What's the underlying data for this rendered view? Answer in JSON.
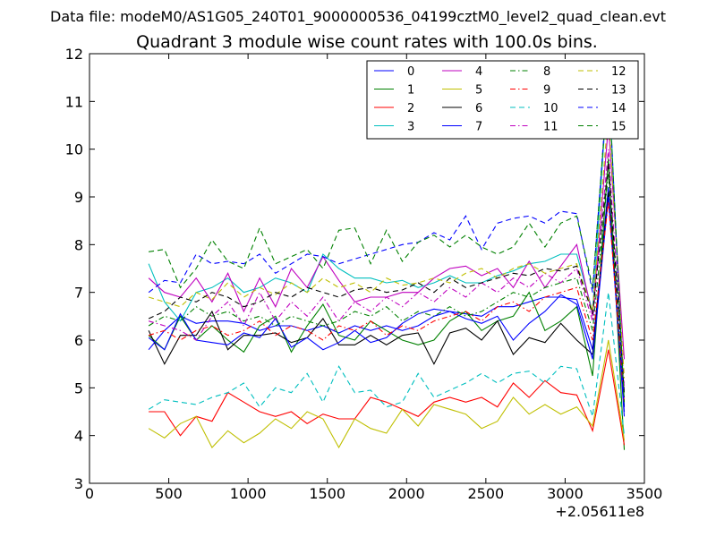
{
  "chart_data": {
    "type": "line",
    "suptitle": "Data file: modeM0/AS1G05_240T01_9000000536_04199cztM0_level2_quad_clean.evt",
    "title": "Quadrant 3 module wise count rates with 100.0s bins.",
    "xlabel": "",
    "ylabel": "",
    "x_offset_label": "+2.05611e8",
    "xlim": [
      0,
      3500
    ],
    "ylim": [
      3,
      12
    ],
    "xticks": [
      "0",
      "500",
      "1000",
      "1500",
      "2000",
      "2500",
      "3000",
      "3500"
    ],
    "yticks": [
      "3",
      "4",
      "5",
      "6",
      "7",
      "8",
      "9",
      "10",
      "11",
      "12"
    ],
    "grid": false,
    "legend_position": "top-right",
    "legend_columns": 4,
    "x": [
      373,
      473,
      573,
      673,
      773,
      873,
      973,
      1073,
      1173,
      1273,
      1373,
      1473,
      1573,
      1673,
      1773,
      1873,
      1973,
      2073,
      2173,
      2273,
      2373,
      2473,
      2573,
      2673,
      2773,
      2873,
      2973,
      3073,
      3173,
      3273,
      3373
    ],
    "series": [
      {
        "name": "0",
        "color": "#0000ff",
        "dash": "solid",
        "values": [
          5.8,
          6.2,
          6.5,
          6.35,
          6.4,
          6.4,
          6.35,
          6.2,
          6.3,
          6.3,
          6.2,
          6.3,
          6.15,
          6.3,
          6.2,
          6.3,
          6.2,
          6.3,
          6.5,
          6.6,
          6.55,
          6.5,
          6.7,
          6.7,
          6.8,
          6.9,
          6.9,
          6.85,
          5.8,
          9.2,
          4.4
        ]
      },
      {
        "name": "1",
        "color": "#008000",
        "dash": "solid",
        "values": [
          6.1,
          5.8,
          6.5,
          6.0,
          6.3,
          6.0,
          5.75,
          6.3,
          6.5,
          5.75,
          6.3,
          6.75,
          6.1,
          6.0,
          6.4,
          6.2,
          6.0,
          5.9,
          6.0,
          6.4,
          6.6,
          6.2,
          6.4,
          6.5,
          7.0,
          6.2,
          6.4,
          6.7,
          5.25,
          9.8,
          3.7
        ]
      },
      {
        "name": "2",
        "color": "#ff0000",
        "dash": "solid",
        "values": [
          4.5,
          4.5,
          4.0,
          4.4,
          4.3,
          4.9,
          4.7,
          4.5,
          4.4,
          4.5,
          4.25,
          4.45,
          4.35,
          4.35,
          4.8,
          4.7,
          4.55,
          4.4,
          4.7,
          4.8,
          4.7,
          4.8,
          4.6,
          5.1,
          4.8,
          5.15,
          4.9,
          4.85,
          4.1,
          5.8,
          3.8
        ]
      },
      {
        "name": "3",
        "color": "#00bfbf",
        "dash": "solid",
        "values": [
          7.6,
          6.8,
          6.4,
          7.0,
          7.1,
          7.3,
          7.0,
          7.1,
          7.3,
          7.2,
          7.0,
          7.8,
          7.5,
          7.3,
          7.3,
          7.2,
          7.25,
          7.1,
          7.2,
          7.35,
          7.2,
          7.2,
          7.35,
          7.45,
          7.6,
          7.65,
          7.8,
          7.8,
          6.6,
          11.6,
          4.6
        ]
      },
      {
        "name": "4",
        "color": "#bf00bf",
        "dash": "solid",
        "values": [
          7.3,
          7.0,
          6.9,
          7.3,
          6.8,
          7.4,
          6.6,
          7.3,
          6.7,
          7.5,
          7.1,
          7.75,
          7.25,
          6.8,
          6.9,
          6.9,
          7.0,
          7.0,
          7.3,
          7.5,
          7.55,
          7.35,
          7.5,
          7.1,
          7.65,
          7.1,
          7.55,
          8.0,
          6.5,
          10.5,
          5.6
        ]
      },
      {
        "name": "5",
        "color": "#bfbf00",
        "dash": "solid",
        "values": [
          4.15,
          3.95,
          4.25,
          4.4,
          3.75,
          4.1,
          3.85,
          4.05,
          4.35,
          4.15,
          4.5,
          4.35,
          3.75,
          4.35,
          4.15,
          4.05,
          4.55,
          4.2,
          4.65,
          4.55,
          4.45,
          4.15,
          4.3,
          4.8,
          4.45,
          4.65,
          4.45,
          4.6,
          4.2,
          6.0,
          3.9
        ]
      },
      {
        "name": "6",
        "color": "#000000",
        "dash": "solid",
        "values": [
          6.2,
          5.5,
          6.1,
          6.1,
          6.6,
          5.8,
          6.1,
          6.1,
          6.15,
          5.95,
          6.05,
          6.45,
          5.9,
          5.9,
          6.1,
          5.9,
          6.1,
          6.15,
          5.5,
          6.15,
          6.25,
          6.0,
          6.4,
          5.7,
          6.05,
          5.95,
          6.35,
          6.0,
          5.7,
          9.1,
          4.6
        ]
      },
      {
        "name": "7",
        "color": "#0000ff",
        "dash": "solid",
        "values": [
          6.05,
          5.8,
          6.55,
          6.0,
          5.95,
          5.9,
          6.15,
          6.05,
          6.45,
          5.85,
          6.05,
          5.8,
          5.95,
          6.2,
          5.95,
          6.05,
          6.35,
          6.55,
          6.65,
          6.6,
          6.45,
          6.35,
          6.5,
          6.0,
          6.35,
          6.6,
          6.95,
          6.75,
          5.6,
          9.0,
          4.5
        ]
      },
      {
        "name": "8",
        "color": "#008000",
        "dash": "dashdot",
        "values": [
          6.3,
          6.5,
          6.4,
          6.7,
          6.5,
          6.6,
          6.4,
          6.5,
          6.3,
          6.5,
          6.4,
          6.3,
          6.4,
          6.6,
          6.5,
          6.7,
          6.4,
          6.6,
          6.5,
          6.7,
          6.5,
          6.6,
          6.8,
          7.0,
          6.9,
          7.1,
          7.2,
          7.3,
          6.2,
          9.5,
          4.8
        ]
      },
      {
        "name": "9",
        "color": "#ff0000",
        "dash": "dashdot",
        "values": [
          6.1,
          6.2,
          6.0,
          6.2,
          6.3,
          6.1,
          6.2,
          6.4,
          6.1,
          6.3,
          6.2,
          6.0,
          6.3,
          6.2,
          6.4,
          6.1,
          6.3,
          6.2,
          6.4,
          6.5,
          6.6,
          6.4,
          6.7,
          6.8,
          6.6,
          6.9,
          7.0,
          7.1,
          6.0,
          8.9,
          4.7
        ]
      },
      {
        "name": "10",
        "color": "#00bfbf",
        "dash": "dashed",
        "values": [
          4.55,
          4.75,
          4.7,
          4.65,
          4.8,
          4.9,
          5.1,
          4.6,
          5.0,
          4.9,
          5.3,
          4.7,
          5.45,
          4.9,
          4.95,
          4.6,
          4.7,
          5.3,
          4.8,
          4.95,
          5.1,
          5.3,
          5.1,
          5.3,
          5.35,
          5.1,
          5.45,
          5.4,
          4.4,
          7.0,
          4.0
        ]
      },
      {
        "name": "11",
        "color": "#bf00bf",
        "dash": "dashdot",
        "values": [
          6.4,
          6.3,
          6.2,
          6.0,
          6.5,
          6.8,
          6.3,
          7.0,
          6.4,
          6.8,
          6.5,
          6.9,
          6.4,
          6.8,
          6.6,
          6.9,
          6.7,
          7.0,
          6.8,
          7.1,
          6.9,
          7.2,
          7.0,
          7.3,
          7.1,
          7.4,
          7.2,
          7.5,
          6.4,
          10.0,
          5.0
        ]
      },
      {
        "name": "12",
        "color": "#bfbf00",
        "dash": "dashed",
        "values": [
          6.9,
          6.8,
          6.7,
          7.0,
          6.85,
          7.2,
          6.9,
          7.1,
          6.95,
          7.2,
          7.0,
          7.3,
          7.1,
          7.2,
          7.0,
          7.3,
          7.15,
          7.2,
          7.3,
          7.2,
          7.4,
          7.5,
          7.3,
          7.5,
          7.6,
          7.4,
          7.5,
          7.6,
          6.6,
          10.8,
          5.2
        ]
      },
      {
        "name": "13",
        "color": "#000000",
        "dash": "dashed",
        "values": [
          6.45,
          6.6,
          6.9,
          6.8,
          7.0,
          6.9,
          6.7,
          6.8,
          7.0,
          6.9,
          7.1,
          7.0,
          6.9,
          7.05,
          7.1,
          7.0,
          7.05,
          7.2,
          7.0,
          7.3,
          7.1,
          7.2,
          7.3,
          7.4,
          7.35,
          7.5,
          7.45,
          7.55,
          6.55,
          9.7,
          4.9
        ]
      },
      {
        "name": "14",
        "color": "#0000ff",
        "dash": "dashed",
        "values": [
          7.0,
          7.25,
          7.2,
          7.8,
          7.6,
          7.65,
          7.6,
          7.8,
          7.4,
          7.6,
          7.8,
          7.75,
          7.6,
          7.7,
          7.8,
          7.9,
          8.0,
          8.05,
          8.25,
          8.1,
          8.6,
          7.9,
          8.45,
          8.55,
          8.6,
          8.45,
          8.7,
          8.65,
          7.0,
          11.6,
          4.5
        ]
      },
      {
        "name": "15",
        "color": "#008000",
        "dash": "dashed",
        "values": [
          7.85,
          7.9,
          7.1,
          7.5,
          8.1,
          7.65,
          7.5,
          8.35,
          7.6,
          7.75,
          7.9,
          7.5,
          8.3,
          8.35,
          7.6,
          8.3,
          7.65,
          8.05,
          8.2,
          7.95,
          8.2,
          7.95,
          7.8,
          7.95,
          8.45,
          7.95,
          8.45,
          8.6,
          7.1,
          11.5,
          4.7
        ]
      }
    ]
  }
}
